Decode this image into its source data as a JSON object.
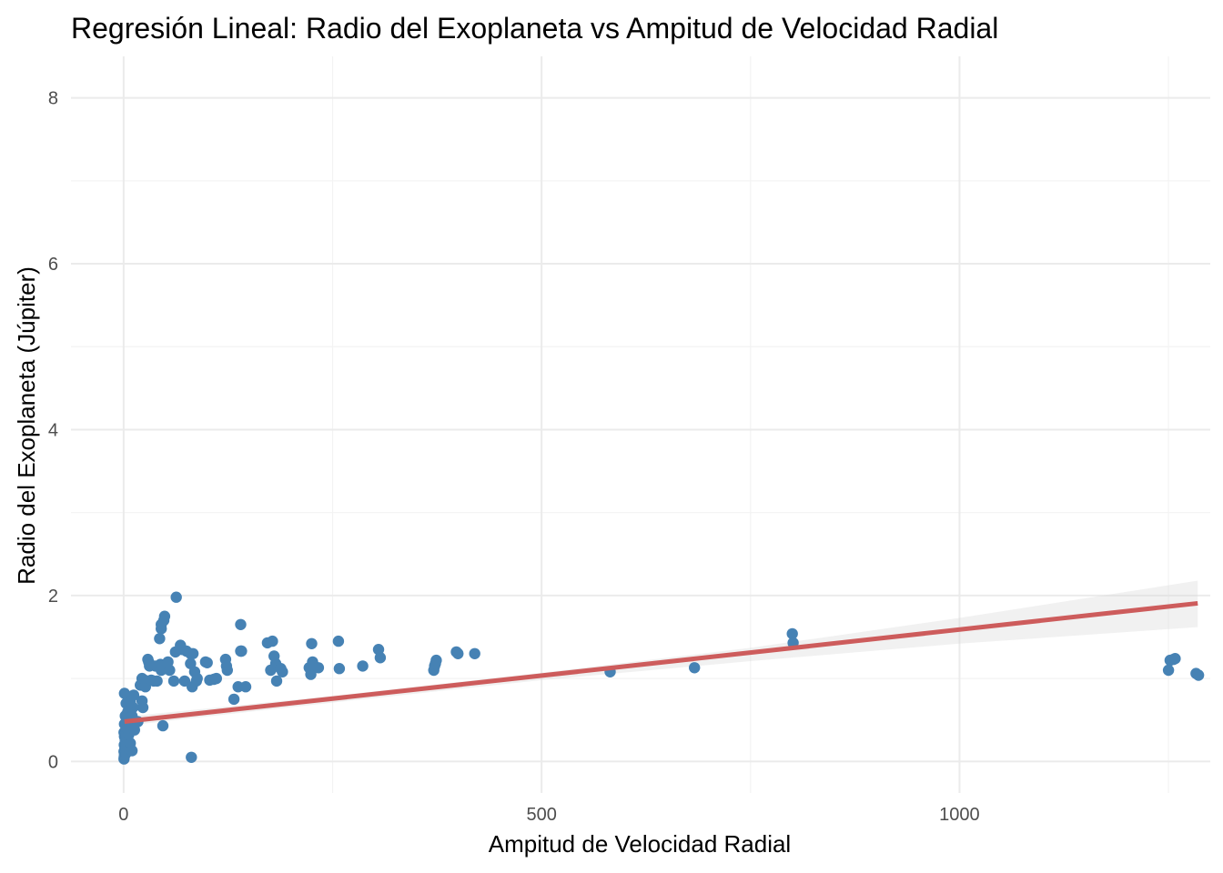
{
  "chart_data": {
    "type": "scatter",
    "title": "Regresión Lineal: Radio del Exoplaneta vs Ampitud de Velocidad Radial",
    "xlabel": "Ampitud de Velocidad Radial",
    "ylabel": "Radio del Exoplaneta (Júpiter)",
    "xlim": [
      -63,
      1300
    ],
    "ylim": [
      -0.38,
      8.5
    ],
    "x_ticks": [
      0,
      500,
      1000
    ],
    "x_tick_labels": [
      "0",
      "500",
      "1000"
    ],
    "x_minor_ticks": [
      250,
      750,
      1250
    ],
    "y_ticks": [
      0,
      2,
      4,
      6,
      8
    ],
    "y_tick_labels": [
      "0",
      "2",
      "4",
      "6",
      "8"
    ],
    "y_minor_ticks": [
      1,
      3,
      5,
      7
    ],
    "grid": true,
    "point_color": "#4682b4",
    "line_color": "#cd5c5c",
    "band_color": "#d9d9d9",
    "regression": {
      "intercept": 0.48,
      "slope": 0.00111,
      "x_start": 1,
      "x_end": 1285
    },
    "confidence_band": [
      {
        "x": 1,
        "low": 0.43,
        "high": 0.54
      },
      {
        "x": 250,
        "low": 0.71,
        "high": 0.79
      },
      {
        "x": 500,
        "low": 0.98,
        "high": 1.07
      },
      {
        "x": 750,
        "low": 1.21,
        "high": 1.37
      },
      {
        "x": 1000,
        "low": 1.42,
        "high": 1.73
      },
      {
        "x": 1285,
        "low": 1.62,
        "high": 2.18
      }
    ],
    "series": [
      {
        "values": [
          [
            0.5,
            0.03
          ],
          [
            0.7,
            0.05
          ],
          [
            1,
            0.08
          ],
          [
            0.5,
            0.12
          ],
          [
            1.5,
            0.15
          ],
          [
            0.8,
            0.2
          ],
          [
            2,
            0.25
          ],
          [
            1,
            0.3
          ],
          [
            0.5,
            0.35
          ],
          [
            3,
            0.1
          ],
          [
            2,
            0.18
          ],
          [
            4,
            0.28
          ],
          [
            5,
            0.38
          ],
          [
            1,
            0.45
          ],
          [
            2,
            0.55
          ],
          [
            3,
            0.7
          ],
          [
            1,
            0.82
          ],
          [
            5,
            0.6
          ],
          [
            7,
            0.15
          ],
          [
            8,
            0.22
          ],
          [
            6,
            0.32
          ],
          [
            9,
            0.4
          ],
          [
            10,
            0.55
          ],
          [
            11,
            0.65
          ],
          [
            8,
            0.72
          ],
          [
            12,
            0.8
          ],
          [
            14,
            0.48
          ],
          [
            17,
            0.48
          ],
          [
            13,
            0.38
          ],
          [
            10,
            0.13
          ],
          [
            20,
            0.92
          ],
          [
            22,
            1.0
          ],
          [
            25,
            0.98
          ],
          [
            23,
            0.65
          ],
          [
            22,
            0.73
          ],
          [
            26,
            0.9
          ],
          [
            30,
            1.2
          ],
          [
            31,
            1.15
          ],
          [
            29,
            1.23
          ],
          [
            33,
            0.98
          ],
          [
            36,
            0.97
          ],
          [
            40,
            0.97
          ],
          [
            38,
            1.15
          ],
          [
            45,
            1.1
          ],
          [
            44,
            1.17
          ],
          [
            43,
            1.48
          ],
          [
            45,
            1.6
          ],
          [
            45,
            1.65
          ],
          [
            48,
            1.7
          ],
          [
            49,
            1.75
          ],
          [
            47,
            0.43
          ],
          [
            50,
            1.12
          ],
          [
            53,
            1.2
          ],
          [
            55,
            1.1
          ],
          [
            60,
            0.97
          ],
          [
            62,
            1.32
          ],
          [
            63,
            1.98
          ],
          [
            68,
            1.4
          ],
          [
            70,
            1.35
          ],
          [
            73,
            0.97
          ],
          [
            75,
            1.33
          ],
          [
            80,
            1.3
          ],
          [
            81,
            0.05
          ],
          [
            80,
            1.18
          ],
          [
            82,
            0.9
          ],
          [
            83,
            1.3
          ],
          [
            85,
            1.08
          ],
          [
            87,
            0.97
          ],
          [
            88,
            1.0
          ],
          [
            98,
            1.2
          ],
          [
            100,
            1.19
          ],
          [
            103,
            0.98
          ],
          [
            108,
            0.99
          ],
          [
            111,
            1.0
          ],
          [
            122,
            1.23
          ],
          [
            123,
            1.15
          ],
          [
            124,
            1.1
          ],
          [
            132,
            0.75
          ],
          [
            137,
            0.9
          ],
          [
            140,
            1.65
          ],
          [
            140,
            1.33
          ],
          [
            141,
            1.33
          ],
          [
            146,
            0.9
          ],
          [
            172,
            1.43
          ],
          [
            176,
            1.1
          ],
          [
            178,
            1.45
          ],
          [
            180,
            1.27
          ],
          [
            182,
            1.18
          ],
          [
            183,
            0.97
          ],
          [
            188,
            1.12
          ],
          [
            190,
            1.08
          ],
          [
            222,
            1.13
          ],
          [
            224,
            1.05
          ],
          [
            225,
            1.42
          ],
          [
            226,
            1.2
          ],
          [
            228,
            1.15
          ],
          [
            233,
            1.13
          ],
          [
            257,
            1.45
          ],
          [
            258,
            1.12
          ],
          [
            286,
            1.15
          ],
          [
            305,
            1.35
          ],
          [
            307,
            1.25
          ],
          [
            371,
            1.1
          ],
          [
            372,
            1.15
          ],
          [
            373,
            1.18
          ],
          [
            374,
            1.22
          ],
          [
            398,
            1.32
          ],
          [
            400,
            1.3
          ],
          [
            420,
            1.3
          ],
          [
            582,
            1.08
          ],
          [
            683,
            1.13
          ],
          [
            800,
            1.54
          ],
          [
            801,
            1.43
          ],
          [
            1250,
            1.1
          ],
          [
            1252,
            1.22
          ],
          [
            1256,
            1.23
          ],
          [
            1258,
            1.24
          ],
          [
            1283,
            1.06
          ],
          [
            1286,
            1.04
          ]
        ]
      }
    ]
  }
}
